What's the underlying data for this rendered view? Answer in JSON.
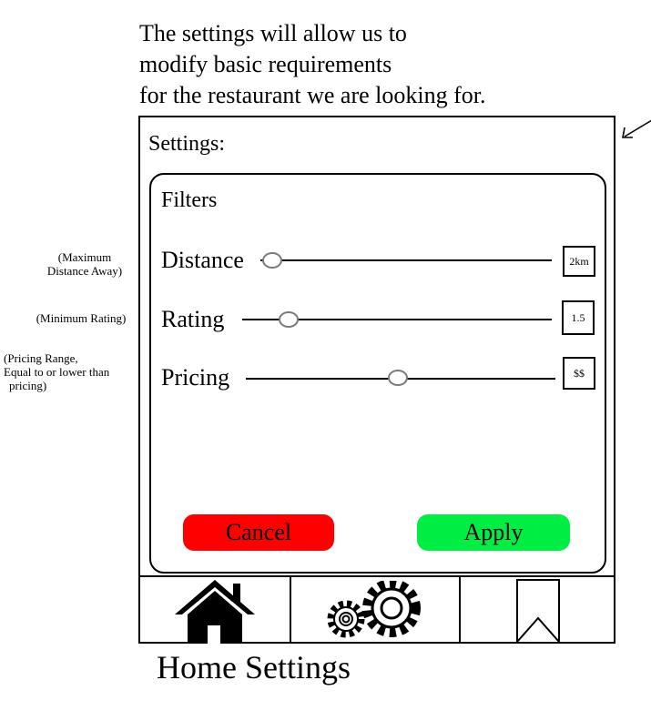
{
  "caption": {
    "lines": [
      "The settings will allow us to",
      "modify basic requirements",
      "for the restaurant we are looking for."
    ]
  },
  "side_notes": {
    "distance": [
      "(Maximum",
      "Distance Away)"
    ],
    "rating": [
      "(Minimum Rating)"
    ],
    "pricing": [
      "(Pricing Range,",
      "Equal to or lower than",
      "pricing)"
    ]
  },
  "settings": {
    "title": "Settings:",
    "filters_title": "Filters",
    "rows": [
      {
        "label": "Distance",
        "value": "2km",
        "slider_fraction": 0.04
      },
      {
        "label": "Rating",
        "value": "1.5",
        "slider_fraction": 0.15
      },
      {
        "label": "Pricing",
        "value": "$$",
        "slider_fraction": 0.49
      }
    ],
    "cancel_label": "Cancel",
    "apply_label": "Apply",
    "colors": {
      "cancel": "#ff0000",
      "apply": "#00ee44"
    }
  },
  "nav": {
    "items": [
      {
        "icon": "home-icon"
      },
      {
        "icon": "gears-icon"
      },
      {
        "icon": "bookmark-icon"
      }
    ],
    "caption": "Home Settings"
  }
}
